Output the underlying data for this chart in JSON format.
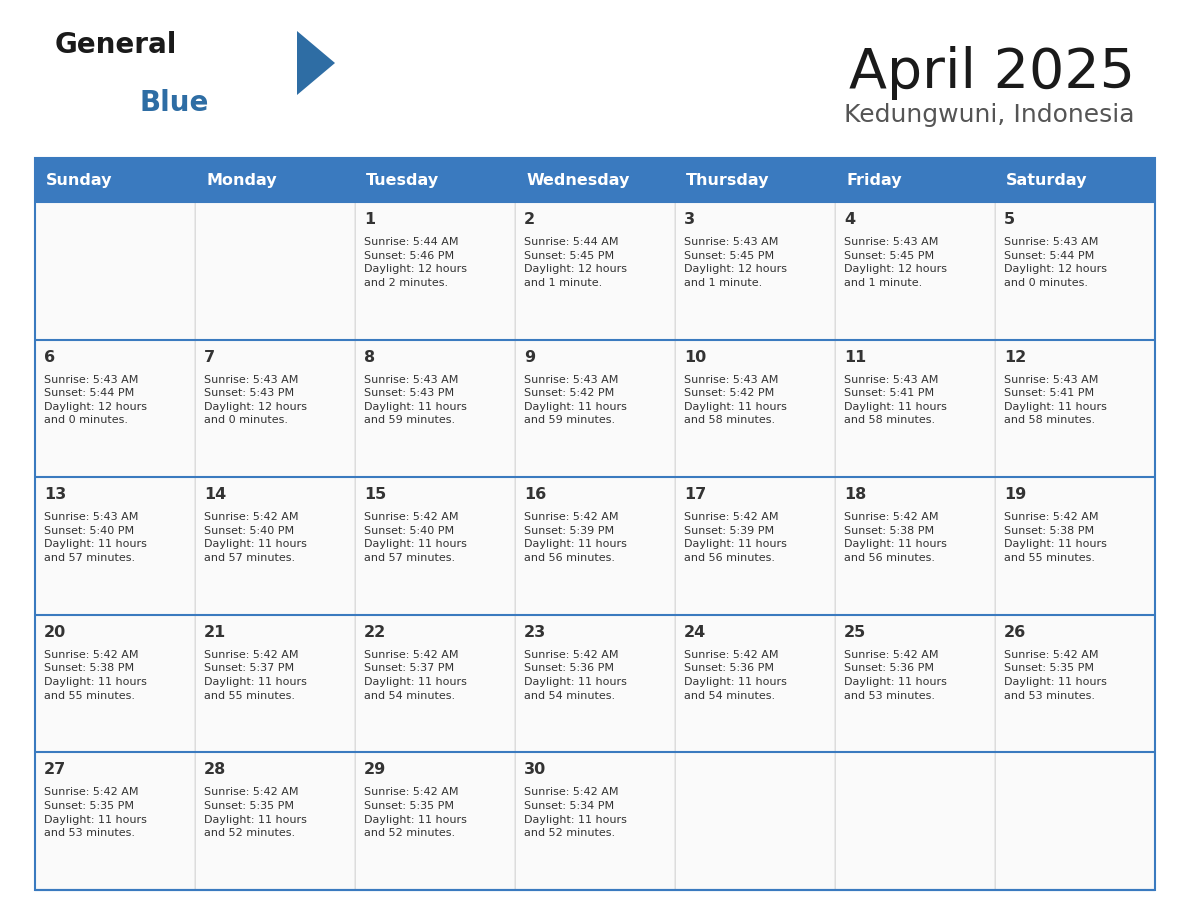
{
  "title": "April 2025",
  "subtitle": "Kedungwuni, Indonesia",
  "header_color": "#3a7abf",
  "header_text_color": "#ffffff",
  "cell_bg_color": "#ffffff",
  "border_color": "#3a7abf",
  "text_color": "#333333",
  "days_of_week": [
    "Sunday",
    "Monday",
    "Tuesday",
    "Wednesday",
    "Thursday",
    "Friday",
    "Saturday"
  ],
  "calendar_data": [
    [
      {
        "day": "",
        "info": ""
      },
      {
        "day": "",
        "info": ""
      },
      {
        "day": "1",
        "info": "Sunrise: 5:44 AM\nSunset: 5:46 PM\nDaylight: 12 hours\nand 2 minutes."
      },
      {
        "day": "2",
        "info": "Sunrise: 5:44 AM\nSunset: 5:45 PM\nDaylight: 12 hours\nand 1 minute."
      },
      {
        "day": "3",
        "info": "Sunrise: 5:43 AM\nSunset: 5:45 PM\nDaylight: 12 hours\nand 1 minute."
      },
      {
        "day": "4",
        "info": "Sunrise: 5:43 AM\nSunset: 5:45 PM\nDaylight: 12 hours\nand 1 minute."
      },
      {
        "day": "5",
        "info": "Sunrise: 5:43 AM\nSunset: 5:44 PM\nDaylight: 12 hours\nand 0 minutes."
      }
    ],
    [
      {
        "day": "6",
        "info": "Sunrise: 5:43 AM\nSunset: 5:44 PM\nDaylight: 12 hours\nand 0 minutes."
      },
      {
        "day": "7",
        "info": "Sunrise: 5:43 AM\nSunset: 5:43 PM\nDaylight: 12 hours\nand 0 minutes."
      },
      {
        "day": "8",
        "info": "Sunrise: 5:43 AM\nSunset: 5:43 PM\nDaylight: 11 hours\nand 59 minutes."
      },
      {
        "day": "9",
        "info": "Sunrise: 5:43 AM\nSunset: 5:42 PM\nDaylight: 11 hours\nand 59 minutes."
      },
      {
        "day": "10",
        "info": "Sunrise: 5:43 AM\nSunset: 5:42 PM\nDaylight: 11 hours\nand 58 minutes."
      },
      {
        "day": "11",
        "info": "Sunrise: 5:43 AM\nSunset: 5:41 PM\nDaylight: 11 hours\nand 58 minutes."
      },
      {
        "day": "12",
        "info": "Sunrise: 5:43 AM\nSunset: 5:41 PM\nDaylight: 11 hours\nand 58 minutes."
      }
    ],
    [
      {
        "day": "13",
        "info": "Sunrise: 5:43 AM\nSunset: 5:40 PM\nDaylight: 11 hours\nand 57 minutes."
      },
      {
        "day": "14",
        "info": "Sunrise: 5:42 AM\nSunset: 5:40 PM\nDaylight: 11 hours\nand 57 minutes."
      },
      {
        "day": "15",
        "info": "Sunrise: 5:42 AM\nSunset: 5:40 PM\nDaylight: 11 hours\nand 57 minutes."
      },
      {
        "day": "16",
        "info": "Sunrise: 5:42 AM\nSunset: 5:39 PM\nDaylight: 11 hours\nand 56 minutes."
      },
      {
        "day": "17",
        "info": "Sunrise: 5:42 AM\nSunset: 5:39 PM\nDaylight: 11 hours\nand 56 minutes."
      },
      {
        "day": "18",
        "info": "Sunrise: 5:42 AM\nSunset: 5:38 PM\nDaylight: 11 hours\nand 56 minutes."
      },
      {
        "day": "19",
        "info": "Sunrise: 5:42 AM\nSunset: 5:38 PM\nDaylight: 11 hours\nand 55 minutes."
      }
    ],
    [
      {
        "day": "20",
        "info": "Sunrise: 5:42 AM\nSunset: 5:38 PM\nDaylight: 11 hours\nand 55 minutes."
      },
      {
        "day": "21",
        "info": "Sunrise: 5:42 AM\nSunset: 5:37 PM\nDaylight: 11 hours\nand 55 minutes."
      },
      {
        "day": "22",
        "info": "Sunrise: 5:42 AM\nSunset: 5:37 PM\nDaylight: 11 hours\nand 54 minutes."
      },
      {
        "day": "23",
        "info": "Sunrise: 5:42 AM\nSunset: 5:36 PM\nDaylight: 11 hours\nand 54 minutes."
      },
      {
        "day": "24",
        "info": "Sunrise: 5:42 AM\nSunset: 5:36 PM\nDaylight: 11 hours\nand 54 minutes."
      },
      {
        "day": "25",
        "info": "Sunrise: 5:42 AM\nSunset: 5:36 PM\nDaylight: 11 hours\nand 53 minutes."
      },
      {
        "day": "26",
        "info": "Sunrise: 5:42 AM\nSunset: 5:35 PM\nDaylight: 11 hours\nand 53 minutes."
      }
    ],
    [
      {
        "day": "27",
        "info": "Sunrise: 5:42 AM\nSunset: 5:35 PM\nDaylight: 11 hours\nand 53 minutes."
      },
      {
        "day": "28",
        "info": "Sunrise: 5:42 AM\nSunset: 5:35 PM\nDaylight: 11 hours\nand 52 minutes."
      },
      {
        "day": "29",
        "info": "Sunrise: 5:42 AM\nSunset: 5:35 PM\nDaylight: 11 hours\nand 52 minutes."
      },
      {
        "day": "30",
        "info": "Sunrise: 5:42 AM\nSunset: 5:34 PM\nDaylight: 11 hours\nand 52 minutes."
      },
      {
        "day": "",
        "info": ""
      },
      {
        "day": "",
        "info": ""
      },
      {
        "day": "",
        "info": ""
      }
    ]
  ],
  "logo_text_general": "General",
  "logo_text_blue": "Blue",
  "logo_triangle_color": "#2e6da4"
}
